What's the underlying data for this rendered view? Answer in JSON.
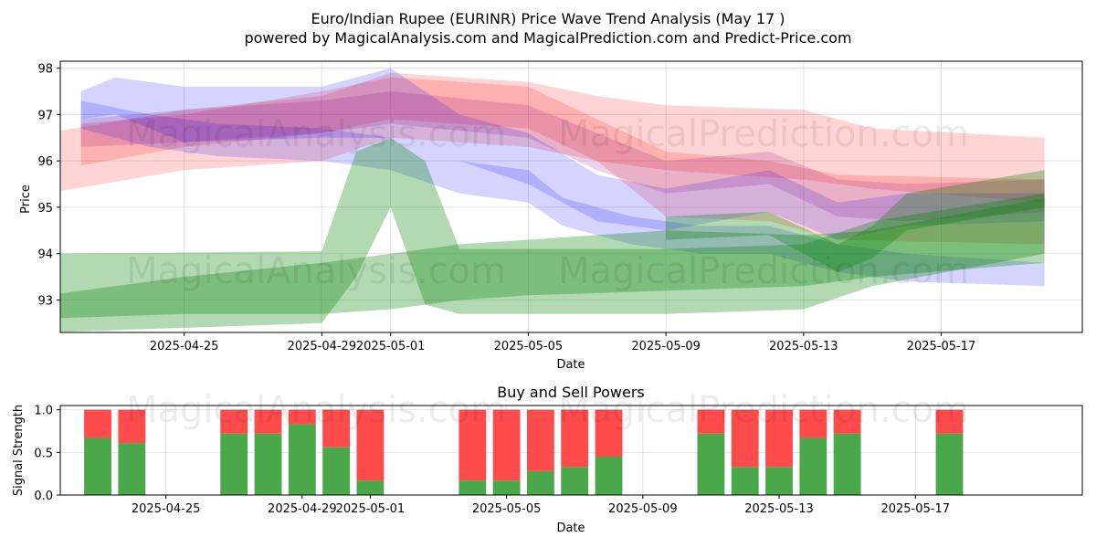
{
  "header": {
    "title_line1": "Euro/Indian Rupee (EURINR) Price Wave Trend Analysis (May 17 )",
    "title_line2": "powered by MagicalAnalysis.com and MagicalPrediction.com and Predict-Price.com"
  },
  "watermarks": {
    "left": "MagicalAnalysis.com",
    "right": "MagicalPrediction.com"
  },
  "colors": {
    "red": "#ff0000",
    "blue": "#0000ff",
    "green": "#008000",
    "purple": "#800080",
    "buy": "#4aa84a",
    "sell": "#ff4b4b"
  },
  "chart_data": [
    {
      "type": "area",
      "title": "",
      "xlabel": "Date",
      "ylabel": "Price",
      "x_ticks": [
        "2025-04-25",
        "2025-04-29",
        "2025-05-01",
        "2025-05-05",
        "2025-05-09",
        "2025-05-13",
        "2025-05-17"
      ],
      "xlim": [
        "2025-04-21",
        "2025-05-21"
      ],
      "y_ticks": [
        93,
        94,
        95,
        96,
        97,
        98
      ],
      "ylim": [
        92.3,
        98.15
      ],
      "grid": true,
      "series": [
        {
          "color": "red",
          "x": [
            "2025-04-21",
            "2025-04-25",
            "2025-04-29",
            "2025-05-01",
            "2025-05-05",
            "2025-05-07",
            "2025-05-09",
            "2025-05-13",
            "2025-05-15",
            "2025-05-20"
          ],
          "upper": [
            96.6,
            97.1,
            97.4,
            97.9,
            97.7,
            97.4,
            97.2,
            97.1,
            96.7,
            96.5
          ],
          "lower": [
            95.3,
            95.8,
            96.0,
            96.5,
            96.3,
            96.0,
            95.8,
            95.6,
            95.4,
            95.1
          ]
        },
        {
          "color": "red",
          "x": [
            "2025-04-22",
            "2025-04-25",
            "2025-04-29",
            "2025-05-01",
            "2025-05-05",
            "2025-05-07",
            "2025-05-09",
            "2025-05-12",
            "2025-05-14",
            "2025-05-20"
          ],
          "upper": [
            96.8,
            97.0,
            97.5,
            97.8,
            97.6,
            96.9,
            96.2,
            96.0,
            95.7,
            95.6
          ],
          "lower": [
            95.9,
            96.3,
            96.6,
            96.9,
            96.7,
            96.0,
            94.8,
            94.7,
            94.3,
            94.2
          ]
        },
        {
          "color": "blue",
          "x": [
            "2025-04-22",
            "2025-04-23",
            "2025-04-25",
            "2025-04-29",
            "2025-05-01",
            "2025-05-03",
            "2025-05-05",
            "2025-05-07",
            "2025-05-09",
            "2025-05-12",
            "2025-05-14",
            "2025-05-16",
            "2025-05-20"
          ],
          "upper": [
            97.5,
            97.8,
            97.6,
            97.6,
            98.0,
            97.0,
            96.6,
            95.7,
            95.4,
            95.8,
            95.1,
            95.3,
            95.3
          ],
          "lower": [
            96.9,
            97.0,
            96.4,
            96.5,
            96.5,
            96.0,
            95.5,
            94.7,
            94.5,
            94.9,
            94.3,
            94.6,
            94.7
          ]
        },
        {
          "color": "blue",
          "x": [
            "2025-04-22",
            "2025-04-24",
            "2025-04-26",
            "2025-04-29",
            "2025-05-01",
            "2025-05-03",
            "2025-05-05",
            "2025-05-06",
            "2025-05-08",
            "2025-05-10",
            "2025-05-12",
            "2025-05-14",
            "2025-05-16",
            "2025-05-20"
          ],
          "upper": [
            97.3,
            97.0,
            96.8,
            96.7,
            96.5,
            96.0,
            95.8,
            95.2,
            94.8,
            94.6,
            94.6,
            94.2,
            94.0,
            93.8
          ],
          "lower": [
            96.7,
            96.3,
            96.1,
            96.0,
            95.8,
            95.3,
            95.1,
            94.6,
            94.2,
            94.0,
            94.0,
            93.6,
            93.4,
            93.3
          ]
        },
        {
          "color": "purple",
          "x": [
            "2025-04-22",
            "2025-04-25",
            "2025-04-29",
            "2025-05-01",
            "2025-05-05",
            "2025-05-07",
            "2025-05-09",
            "2025-05-12",
            "2025-05-14",
            "2025-05-16",
            "2025-05-20"
          ],
          "upper": [
            96.9,
            97.1,
            97.3,
            97.5,
            97.2,
            96.6,
            96.0,
            96.2,
            95.6,
            95.5,
            95.6
          ],
          "lower": [
            96.3,
            96.4,
            96.6,
            96.8,
            96.5,
            95.8,
            95.3,
            95.5,
            94.8,
            94.7,
            94.9
          ]
        },
        {
          "color": "green",
          "x": [
            "2025-04-21",
            "2025-04-29",
            "2025-04-30",
            "2025-05-01",
            "2025-05-02",
            "2025-05-03",
            "2025-05-05",
            "2025-05-09",
            "2025-05-13",
            "2025-05-15",
            "2025-05-20"
          ],
          "upper": [
            94.0,
            94.05,
            96.2,
            96.5,
            96.0,
            94.1,
            94.1,
            94.1,
            94.2,
            94.7,
            95.3
          ],
          "lower": [
            92.3,
            92.5,
            93.5,
            95.0,
            92.9,
            92.7,
            92.7,
            92.7,
            92.8,
            93.3,
            94.0
          ]
        },
        {
          "color": "green",
          "x": [
            "2025-04-21",
            "2025-04-25",
            "2025-04-29",
            "2025-05-01",
            "2025-05-03",
            "2025-05-05",
            "2025-05-09",
            "2025-05-13",
            "2025-05-15",
            "2025-05-20"
          ],
          "upper": [
            93.1,
            93.5,
            93.8,
            94.0,
            94.2,
            94.3,
            94.5,
            94.4,
            94.5,
            95.2
          ],
          "lower": [
            92.6,
            92.7,
            92.7,
            92.8,
            93.0,
            93.1,
            93.2,
            93.3,
            93.5,
            93.8
          ]
        },
        {
          "color": "green",
          "x": [
            "2025-05-09",
            "2025-05-12",
            "2025-05-14",
            "2025-05-15",
            "2025-05-16",
            "2025-05-20"
          ],
          "upper": [
            94.8,
            94.9,
            94.2,
            94.6,
            95.3,
            95.8
          ],
          "lower": [
            94.3,
            94.4,
            93.6,
            93.9,
            94.5,
            95.0
          ]
        }
      ]
    },
    {
      "type": "bar",
      "title": "Buy and Sell Powers",
      "xlabel": "Date",
      "ylabel": "Signal Strength",
      "x_ticks": [
        "2025-04-25",
        "2025-04-29",
        "2025-05-01",
        "2025-05-05",
        "2025-05-09",
        "2025-05-13",
        "2025-05-17"
      ],
      "xlim": [
        "2025-04-21",
        "2025-05-21"
      ],
      "y_ticks": [
        "0.0",
        "0.5",
        "1.0"
      ],
      "ylim": [
        0,
        1.05
      ],
      "grid": true,
      "categories": [
        "2025-04-23",
        "2025-04-24",
        "2025-04-27",
        "2025-04-28",
        "2025-04-29",
        "2025-04-30",
        "2025-05-01",
        "2025-05-04",
        "2025-05-05",
        "2025-05-06",
        "2025-05-07",
        "2025-05-08",
        "2025-05-11",
        "2025-05-12",
        "2025-05-13",
        "2025-05-14",
        "2025-05-15",
        "2025-05-18"
      ],
      "series": [
        {
          "values": [
            0.67,
            0.61,
            0.72,
            0.72,
            0.83,
            0.56,
            0.17,
            0.17,
            0.17,
            0.28,
            0.33,
            0.45,
            0.72,
            0.33,
            0.33,
            0.67,
            0.72,
            0.72
          ]
        },
        {
          "values": [
            0.33,
            0.39,
            0.28,
            0.28,
            0.17,
            0.44,
            0.83,
            0.83,
            0.83,
            0.72,
            0.67,
            0.55,
            0.28,
            0.67,
            0.67,
            0.33,
            0.28,
            0.28
          ]
        }
      ]
    }
  ]
}
